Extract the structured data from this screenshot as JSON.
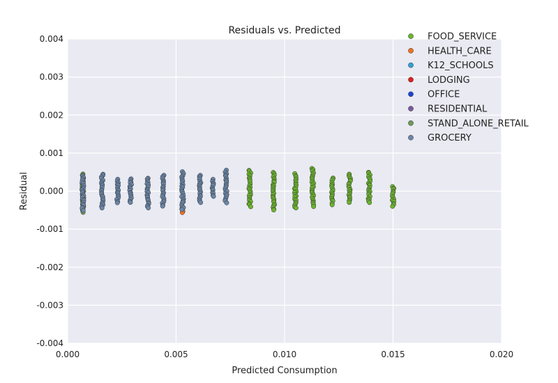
{
  "chart_data": {
    "type": "scatter",
    "title": "Residuals vs. Predicted",
    "xlabel": "Predicted Consumption",
    "ylabel": "Residual",
    "xlim": [
      0.0,
      0.02
    ],
    "ylim": [
      -0.004,
      0.004
    ],
    "xticks": [
      "0.000",
      "0.005",
      "0.010",
      "0.015",
      "0.020"
    ],
    "yticks": [
      "-0.004",
      "-0.003",
      "-0.002",
      "-0.001",
      "0.000",
      "0.001",
      "0.002",
      "0.003",
      "0.004"
    ],
    "grid": true,
    "background": "#eaeaf2",
    "legend_placement": "top-right, outside plot",
    "legend": [
      {
        "name": "FOOD_SERVICE",
        "color": "#6ab42d"
      },
      {
        "name": "HEALTH_CARE",
        "color": "#f07020"
      },
      {
        "name": "K12_SCHOOLS",
        "color": "#30a0d8"
      },
      {
        "name": "LODGING",
        "color": "#e02020"
      },
      {
        "name": "OFFICE",
        "color": "#1a44d8"
      },
      {
        "name": "RESIDENTIAL",
        "color": "#7a5a9a"
      },
      {
        "name": "STAND_ALONE_RETAIL",
        "color": "#6a9a5a"
      },
      {
        "name": "GROCERY",
        "color": "#6a86a8"
      }
    ],
    "series": [
      {
        "name": "STAND_ALONE_RETAIL",
        "color": "#6a9a5a",
        "clusters": [
          {
            "x": 0.0007,
            "ymin": -0.00055,
            "ymax": 0.00045
          }
        ]
      },
      {
        "name": "HEALTH_CARE",
        "color": "#f07020",
        "clusters": [
          {
            "x": 0.0053,
            "ymin": -0.00055,
            "ymax": -0.00045
          }
        ]
      },
      {
        "name": "GROCERY",
        "color": "#6a86a8",
        "clusters": [
          {
            "x": 0.0007,
            "ymin": -0.0005,
            "ymax": 0.0004
          },
          {
            "x": 0.0016,
            "ymin": -0.00045,
            "ymax": 0.00045
          },
          {
            "x": 0.0023,
            "ymin": -0.0003,
            "ymax": 0.0003
          },
          {
            "x": 0.0029,
            "ymin": -0.0003,
            "ymax": 0.00033
          },
          {
            "x": 0.0037,
            "ymin": -0.00045,
            "ymax": 0.00035
          },
          {
            "x": 0.0044,
            "ymin": -0.0004,
            "ymax": 0.00042
          },
          {
            "x": 0.0053,
            "ymin": -0.00048,
            "ymax": 0.0005
          },
          {
            "x": 0.0061,
            "ymin": -0.0003,
            "ymax": 0.00042
          },
          {
            "x": 0.0067,
            "ymin": -0.00015,
            "ymax": 0.0003
          },
          {
            "x": 0.0073,
            "ymin": -0.0003,
            "ymax": 0.00055
          }
        ]
      },
      {
        "name": "FOOD_SERVICE",
        "color": "#6ab42d",
        "clusters": [
          {
            "x": 0.0084,
            "ymin": -0.0004,
            "ymax": 0.00055
          },
          {
            "x": 0.0095,
            "ymin": -0.0005,
            "ymax": 0.0005
          },
          {
            "x": 0.0105,
            "ymin": -0.00045,
            "ymax": 0.00045
          },
          {
            "x": 0.0113,
            "ymin": -0.0004,
            "ymax": 0.0006
          },
          {
            "x": 0.0122,
            "ymin": -0.00035,
            "ymax": 0.00035
          },
          {
            "x": 0.013,
            "ymin": -0.0003,
            "ymax": 0.00045
          },
          {
            "x": 0.0139,
            "ymin": -0.0003,
            "ymax": 0.0005
          },
          {
            "x": 0.015,
            "ymin": -0.0004,
            "ymax": 0.00012
          }
        ]
      }
    ]
  }
}
